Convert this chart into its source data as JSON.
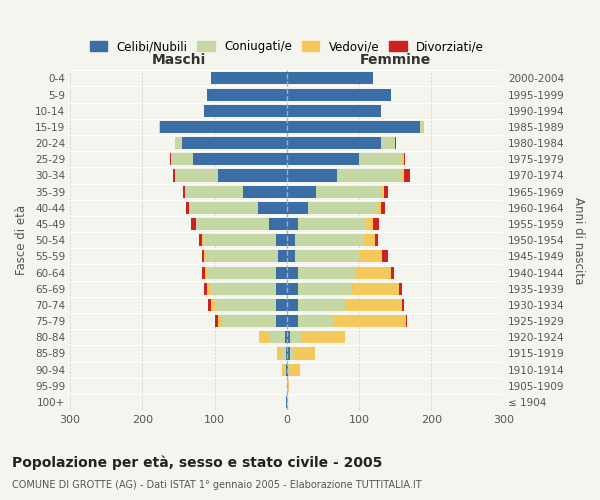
{
  "age_groups": [
    "100+",
    "95-99",
    "90-94",
    "85-89",
    "80-84",
    "75-79",
    "70-74",
    "65-69",
    "60-64",
    "55-59",
    "50-54",
    "45-49",
    "40-44",
    "35-39",
    "30-34",
    "25-29",
    "20-24",
    "15-19",
    "10-14",
    "5-9",
    "0-4"
  ],
  "birth_years": [
    "≤ 1904",
    "1905-1909",
    "1910-1914",
    "1915-1919",
    "1920-1924",
    "1925-1929",
    "1930-1934",
    "1935-1939",
    "1940-1944",
    "1945-1949",
    "1950-1954",
    "1955-1959",
    "1960-1964",
    "1965-1969",
    "1970-1974",
    "1975-1979",
    "1980-1984",
    "1985-1989",
    "1990-1994",
    "1995-1999",
    "2000-2004"
  ],
  "maschi": {
    "celibi": [
      1,
      0,
      1,
      1,
      3,
      15,
      15,
      15,
      15,
      12,
      15,
      25,
      40,
      60,
      95,
      130,
      145,
      175,
      115,
      110,
      105
    ],
    "coniugati": [
      0,
      0,
      2,
      5,
      20,
      75,
      85,
      90,
      95,
      100,
      100,
      100,
      95,
      80,
      60,
      30,
      10,
      2,
      0,
      0,
      0
    ],
    "vedovi": [
      0,
      0,
      3,
      8,
      15,
      5,
      5,
      5,
      3,
      2,
      2,
      1,
      1,
      1,
      0,
      0,
      0,
      0,
      0,
      0,
      0
    ],
    "divorziati": [
      0,
      0,
      0,
      0,
      0,
      4,
      4,
      4,
      4,
      4,
      4,
      6,
      4,
      3,
      2,
      1,
      0,
      0,
      0,
      0,
      0
    ]
  },
  "femmine": {
    "nubili": [
      1,
      1,
      2,
      4,
      5,
      15,
      15,
      15,
      15,
      12,
      12,
      15,
      30,
      40,
      70,
      100,
      130,
      185,
      130,
      145,
      120
    ],
    "coniugate": [
      0,
      0,
      2,
      5,
      15,
      50,
      65,
      75,
      80,
      90,
      95,
      95,
      95,
      90,
      90,
      60,
      20,
      5,
      0,
      0,
      0
    ],
    "vedove": [
      0,
      2,
      15,
      30,
      60,
      100,
      80,
      65,
      50,
      30,
      15,
      10,
      5,
      5,
      3,
      2,
      0,
      0,
      0,
      0,
      0
    ],
    "divorziate": [
      0,
      0,
      0,
      0,
      0,
      2,
      2,
      5,
      3,
      8,
      5,
      8,
      6,
      5,
      7,
      2,
      1,
      0,
      0,
      0,
      0
    ]
  },
  "colors": {
    "celibi_nubili": "#3a6ea5",
    "coniugati": "#c5d8a4",
    "vedovi": "#f5c85c",
    "divorziati": "#cc2222"
  },
  "xlim": 300,
  "title": "Popolazione per età, sesso e stato civile - 2005",
  "subtitle": "COMUNE DI GROTTE (AG) - Dati ISTAT 1° gennaio 2005 - Elaborazione TUTTITALIA.IT",
  "ylabel_left": "Fasce di età",
  "ylabel_right": "Anni di nascita",
  "xlabel_left": "Maschi",
  "xlabel_right": "Femmine",
  "background_color": "#f5f5f0"
}
